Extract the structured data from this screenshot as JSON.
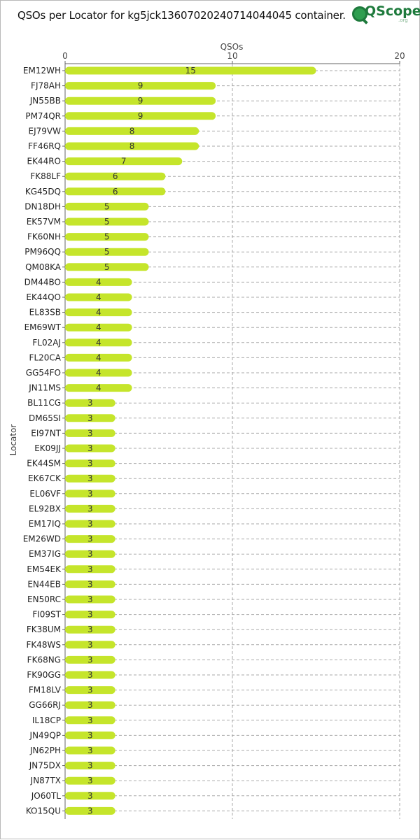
{
  "title": "QSOs per Locator for kg5jck13607020240714044045 container.",
  "logo": {
    "brand": "QScope",
    "tld": ".org"
  },
  "colors": {
    "bar": "#c5e52b",
    "grid": "#aaaaaa",
    "axis": "#666666"
  },
  "chart_data": {
    "type": "bar",
    "orientation": "horizontal",
    "xlabel": "QSOs",
    "ylabel": "Locator",
    "xlim": [
      0,
      20
    ],
    "xticks": [
      0,
      10,
      20
    ],
    "grid": true,
    "categories": [
      "EM12WH",
      "FJ78AH",
      "JN55BB",
      "PM74QR",
      "EJ79VW",
      "FF46RQ",
      "EK44RO",
      "FK88LF",
      "KG45DQ",
      "DN18DH",
      "EK57VM",
      "FK60NH",
      "PM96QQ",
      "QM08KA",
      "DM44BO",
      "EK44QO",
      "EL83SB",
      "EM69WT",
      "FL02AJ",
      "FL20CA",
      "GG54FO",
      "JN11MS",
      "BL11CG",
      "DM65SI",
      "EI97NT",
      "EK09JJ",
      "EK44SM",
      "EK67CK",
      "EL06VF",
      "EL92BX",
      "EM17IQ",
      "EM26WD",
      "EM37IG",
      "EM54EK",
      "EN44EB",
      "EN50RC",
      "FI09ST",
      "FK38UM",
      "FK48WS",
      "FK68NG",
      "FK90GG",
      "FM18LV",
      "GG66RJ",
      "IL18CP",
      "JN49QP",
      "JN62PH",
      "JN75DX",
      "JN87TX",
      "JO60TL",
      "KO15QU"
    ],
    "values": [
      15,
      9,
      9,
      9,
      8,
      8,
      7,
      6,
      6,
      5,
      5,
      5,
      5,
      5,
      4,
      4,
      4,
      4,
      4,
      4,
      4,
      4,
      3,
      3,
      3,
      3,
      3,
      3,
      3,
      3,
      3,
      3,
      3,
      3,
      3,
      3,
      3,
      3,
      3,
      3,
      3,
      3,
      3,
      3,
      3,
      3,
      3,
      3,
      3,
      3
    ]
  }
}
